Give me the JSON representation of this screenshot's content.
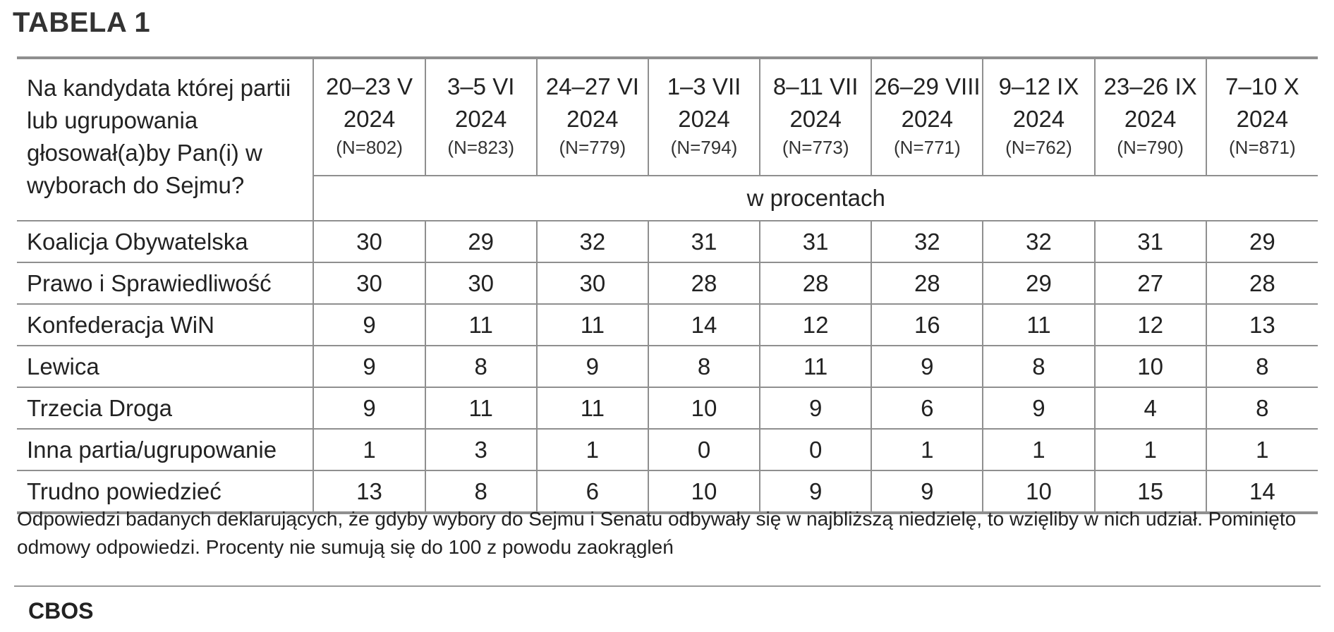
{
  "title": "TABELA 1",
  "table": {
    "question": "Na kandydata której partii lub ugrupowania głosował(a)by Pan(i) w wyborach do Sejmu?",
    "unit_label": "w procentach",
    "columns": [
      {
        "dates": "20–23 V 2024",
        "n": "(N=802)"
      },
      {
        "dates": "3–5 VI 2024",
        "n": "(N=823)"
      },
      {
        "dates": "24–27 VI 2024",
        "n": "(N=779)"
      },
      {
        "dates": "1–3 VII 2024",
        "n": "(N=794)"
      },
      {
        "dates": "8–11 VII 2024",
        "n": "(N=773)"
      },
      {
        "dates": "26–29 VIII 2024",
        "n": "(N=771)"
      },
      {
        "dates": "9–12 IX 2024",
        "n": "(N=762)"
      },
      {
        "dates": "23–26 IX 2024",
        "n": "(N=790)"
      },
      {
        "dates": "7–10 X 2024",
        "n": "(N=871)"
      }
    ],
    "rows": [
      {
        "label": "Koalicja Obywatelska",
        "values": [
          "30",
          "29",
          "32",
          "31",
          "31",
          "32",
          "32",
          "31",
          "29"
        ]
      },
      {
        "label": "Prawo i Sprawiedliwość",
        "values": [
          "30",
          "30",
          "30",
          "28",
          "28",
          "28",
          "29",
          "27",
          "28"
        ]
      },
      {
        "label": "Konfederacja WiN",
        "values": [
          "9",
          "11",
          "11",
          "14",
          "12",
          "16",
          "11",
          "12",
          "13"
        ]
      },
      {
        "label": "Lewica",
        "values": [
          "9",
          "8",
          "9",
          "8",
          "11",
          "9",
          "8",
          "10",
          "8"
        ]
      },
      {
        "label": "Trzecia Droga",
        "values": [
          "9",
          "11",
          "11",
          "10",
          "9",
          "6",
          "9",
          "4",
          "8"
        ]
      },
      {
        "label": "Inna partia/ugrupowanie",
        "values": [
          "1",
          "3",
          "1",
          "0",
          "0",
          "1",
          "1",
          "1",
          "1"
        ]
      },
      {
        "label": "Trudno powiedzieć",
        "values": [
          "13",
          "8",
          "6",
          "10",
          "9",
          "9",
          "10",
          "15",
          "14"
        ]
      }
    ]
  },
  "note": "Odpowiedzi badanych deklarujących, że gdyby wybory do Sejmu i Senatu odbywały się w najbliższą niedzielę, to wzięliby w nich udział. Pominięto odmowy odpowiedzi. Procenty nie sumują się do 100 z powodu zaokrągleń",
  "source": "CBOS"
}
